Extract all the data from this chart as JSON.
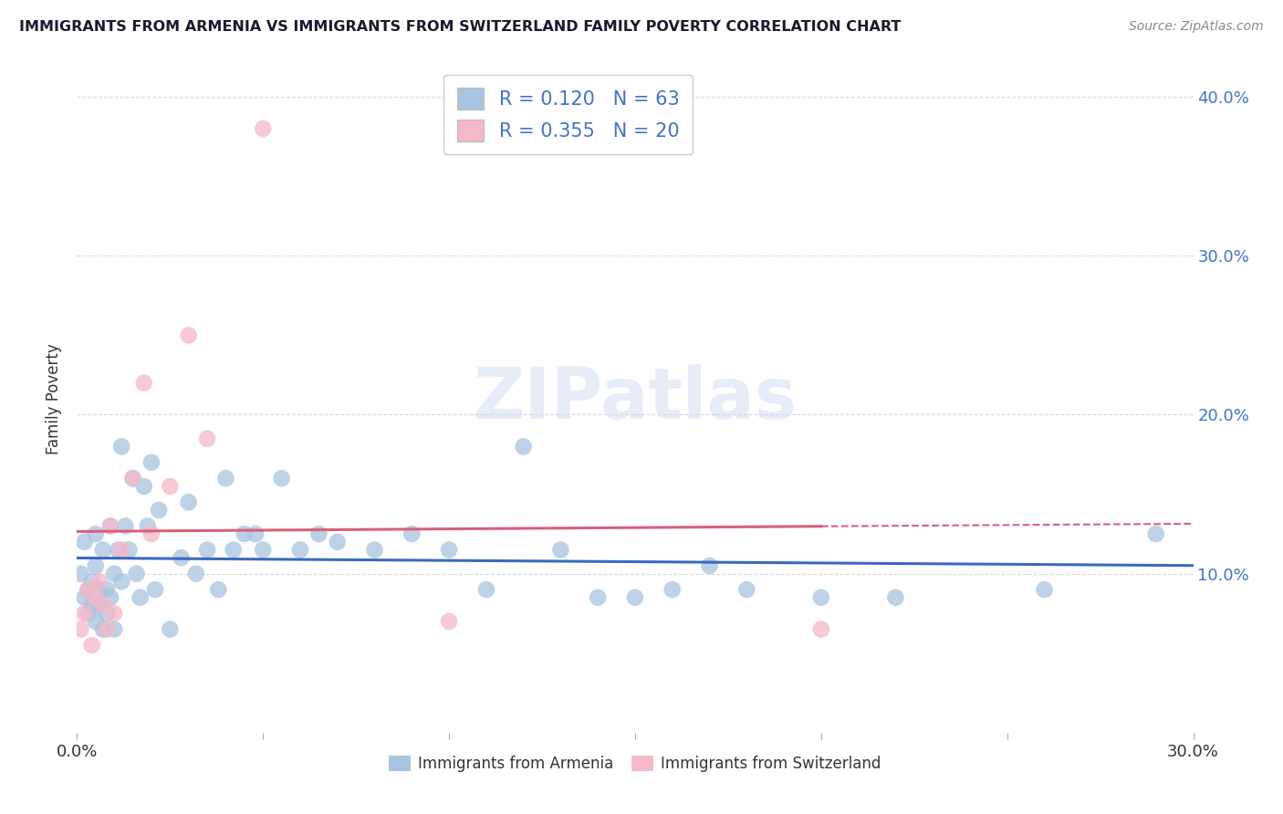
{
  "title": "IMMIGRANTS FROM ARMENIA VS IMMIGRANTS FROM SWITZERLAND FAMILY POVERTY CORRELATION CHART",
  "source": "Source: ZipAtlas.com",
  "ylabel": "Family Poverty",
  "xlabel_armenia": "Immigrants from Armenia",
  "xlabel_switzerland": "Immigrants from Switzerland",
  "armenia_R": 0.12,
  "armenia_N": 63,
  "switzerland_R": 0.355,
  "switzerland_N": 20,
  "xlim": [
    0.0,
    0.3
  ],
  "ylim": [
    0.0,
    0.42
  ],
  "yticks": [
    0.1,
    0.2,
    0.3,
    0.4
  ],
  "xticks": [
    0.0,
    0.05,
    0.1,
    0.15,
    0.2,
    0.25,
    0.3
  ],
  "ytick_labels": [
    "10.0%",
    "20.0%",
    "30.0%",
    "40.0%"
  ],
  "color_armenia": "#a8c4e0",
  "color_switzerland": "#f4b8c8",
  "color_line_armenia": "#3a6abf",
  "color_line_switzerland": "#d95f7a",
  "armenia_x": [
    0.001,
    0.002,
    0.002,
    0.003,
    0.003,
    0.004,
    0.004,
    0.005,
    0.005,
    0.005,
    0.006,
    0.006,
    0.007,
    0.007,
    0.008,
    0.008,
    0.009,
    0.009,
    0.01,
    0.01,
    0.011,
    0.012,
    0.012,
    0.013,
    0.014,
    0.015,
    0.016,
    0.017,
    0.018,
    0.019,
    0.02,
    0.021,
    0.022,
    0.025,
    0.028,
    0.03,
    0.032,
    0.035,
    0.038,
    0.04,
    0.042,
    0.045,
    0.048,
    0.05,
    0.055,
    0.06,
    0.065,
    0.07,
    0.08,
    0.09,
    0.1,
    0.11,
    0.12,
    0.13,
    0.14,
    0.15,
    0.16,
    0.17,
    0.18,
    0.2,
    0.22,
    0.26,
    0.29
  ],
  "armenia_y": [
    0.1,
    0.085,
    0.12,
    0.09,
    0.075,
    0.095,
    0.08,
    0.125,
    0.07,
    0.105,
    0.09,
    0.08,
    0.115,
    0.065,
    0.09,
    0.075,
    0.13,
    0.085,
    0.1,
    0.065,
    0.115,
    0.18,
    0.095,
    0.13,
    0.115,
    0.16,
    0.1,
    0.085,
    0.155,
    0.13,
    0.17,
    0.09,
    0.14,
    0.065,
    0.11,
    0.145,
    0.1,
    0.115,
    0.09,
    0.16,
    0.115,
    0.125,
    0.125,
    0.115,
    0.16,
    0.115,
    0.125,
    0.12,
    0.115,
    0.125,
    0.115,
    0.09,
    0.18,
    0.115,
    0.085,
    0.085,
    0.09,
    0.105,
    0.09,
    0.085,
    0.085,
    0.09,
    0.125
  ],
  "switzerland_x": [
    0.001,
    0.002,
    0.003,
    0.004,
    0.005,
    0.006,
    0.007,
    0.008,
    0.009,
    0.01,
    0.012,
    0.015,
    0.018,
    0.02,
    0.025,
    0.03,
    0.035,
    0.05,
    0.1,
    0.2
  ],
  "switzerland_y": [
    0.065,
    0.075,
    0.09,
    0.055,
    0.085,
    0.095,
    0.08,
    0.065,
    0.13,
    0.075,
    0.115,
    0.16,
    0.22,
    0.125,
    0.155,
    0.25,
    0.185,
    0.38,
    0.07,
    0.065
  ],
  "watermark": "ZIPatlas",
  "background_color": "#ffffff",
  "grid_color": "#d8d8d8"
}
